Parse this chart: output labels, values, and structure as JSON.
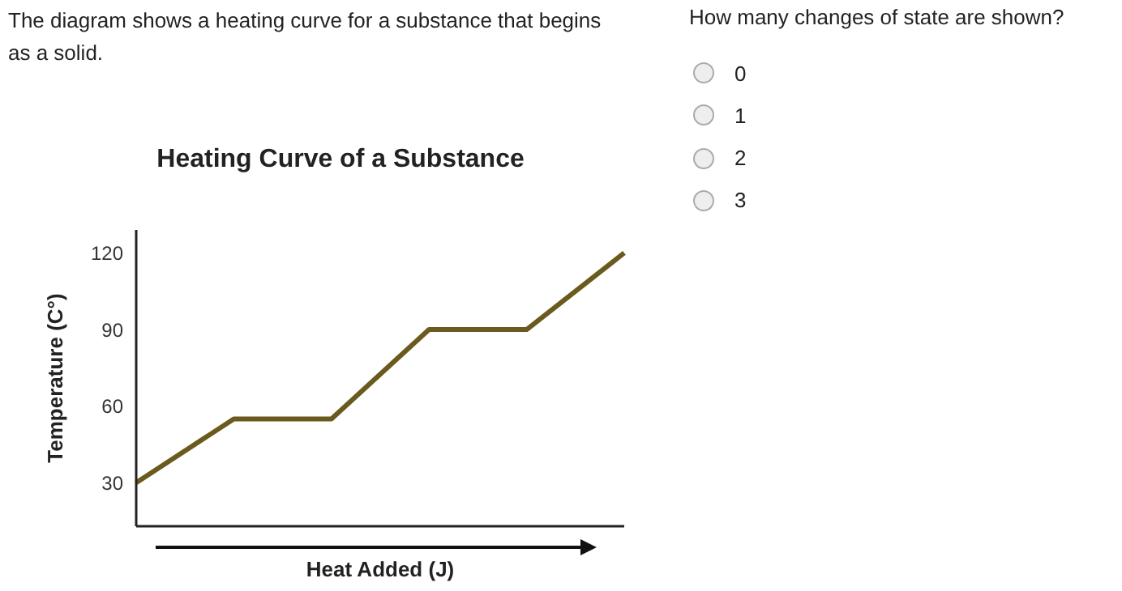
{
  "chart_data": {
    "type": "line",
    "title": "Heating Curve of a Substance",
    "xlabel": "Heat Added (J)",
    "ylabel": "Temperature (C°)",
    "categories": [
      null,
      null,
      null,
      null,
      null,
      null
    ],
    "series": [
      {
        "color": "#6b5a1e",
        "values": [
          30,
          55,
          55,
          90,
          90,
          120
        ]
      }
    ],
    "ylim": [
      13,
      129
    ],
    "yticks": [
      30,
      60,
      90,
      120
    ],
    "grid": false,
    "legend": false,
    "marker": "none",
    "line_style": "solid",
    "annotations": [
      "The diagram shows a heating curve for a substance that begins as a solid.",
      "How many changes of state are shown?",
      "0",
      "1",
      "2",
      "3"
    ]
  }
}
